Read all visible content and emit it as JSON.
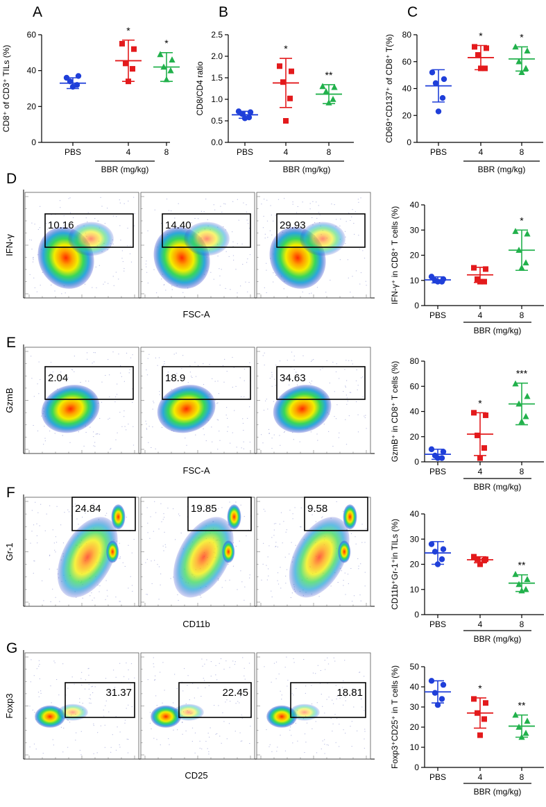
{
  "colors": {
    "pbs": "#1f3fd9",
    "bbr4": "#e31a1c",
    "bbr8": "#22b14c"
  },
  "panel_letters": [
    "A",
    "B",
    "C",
    "D",
    "E",
    "F",
    "G"
  ],
  "chart_data": [
    {
      "id": "A",
      "type": "scatter",
      "ylabel": "CD8⁺ of CD3⁺ TILs (%)",
      "ylim": [
        0,
        60
      ],
      "yticks": [
        "0",
        "20",
        "40",
        "60"
      ],
      "categories": [
        "PBS",
        "4",
        "8"
      ],
      "group_label": "BBR (mg/kg)",
      "points": [
        [
          36,
          37,
          34,
          32,
          31
        ],
        [
          55,
          52,
          44,
          41,
          34
        ],
        [
          49,
          46,
          42,
          40,
          35
        ]
      ],
      "mean": [
        33,
        45.5,
        42
      ],
      "sd": [
        3,
        11.5,
        8
      ],
      "significance": [
        "",
        "*",
        "*"
      ]
    },
    {
      "id": "B",
      "type": "scatter",
      "ylabel": "CD8/CD4 ratio",
      "ylim": [
        0,
        2.5
      ],
      "yticks": [
        "0.0",
        "0.5",
        "1.0",
        "1.5",
        "2.0",
        "2.5"
      ],
      "categories": [
        "PBS",
        "4",
        "8"
      ],
      "group_label": "BBR (mg/kg)",
      "points": [
        [
          0.72,
          0.7,
          0.66,
          0.58,
          0.56
        ],
        [
          1.77,
          1.65,
          1.4,
          1.02,
          0.5
        ],
        [
          1.3,
          1.28,
          1.18,
          1.0,
          0.92
        ]
      ],
      "mean": [
        0.64,
        1.38,
        1.12
      ],
      "sd": [
        0.08,
        0.57,
        0.22
      ],
      "significance": [
        "",
        "*",
        "**"
      ]
    },
    {
      "id": "C",
      "type": "scatter",
      "ylabel": "CD69⁺CD137⁺ of CD8⁺ T(%)",
      "ylim": [
        0,
        80
      ],
      "yticks": [
        "0",
        "20",
        "40",
        "60",
        "80"
      ],
      "categories": [
        "PBS",
        "4",
        "8"
      ],
      "group_label": "BBR (mg/kg)",
      "points": [
        [
          52,
          47,
          44,
          33,
          23
        ],
        [
          71,
          70,
          65,
          55,
          55
        ],
        [
          71,
          68,
          60,
          55,
          52
        ]
      ],
      "mean": [
        42,
        63,
        62
      ],
      "sd": [
        12,
        9,
        9
      ],
      "significance": [
        "",
        "*",
        "*"
      ]
    },
    {
      "id": "D",
      "type": "scatter",
      "ylabel": "IFN-γ⁺ in CD8⁺ T cells (%)",
      "ylim": [
        0,
        40
      ],
      "yticks": [
        "0",
        "10",
        "20",
        "30",
        "40"
      ],
      "categories": [
        "PBS",
        "4",
        "8"
      ],
      "group_label": "BBR (mg/kg)",
      "points": [
        [
          11.5,
          10.5,
          10,
          9.5,
          9.5
        ],
        [
          15,
          14.5,
          10.5,
          9.5,
          9.5
        ],
        [
          29.5,
          28.5,
          22,
          17,
          15
        ]
      ],
      "mean": [
        10.2,
        12.2,
        22
      ],
      "sd": [
        1.2,
        3,
        8
      ],
      "significance": [
        "",
        "",
        "*"
      ]
    },
    {
      "id": "E",
      "type": "scatter",
      "ylabel": "GzmB⁺ in CD8⁺ T cells (%)",
      "ylim": [
        0,
        80
      ],
      "yticks": [
        "0",
        "20",
        "40",
        "60",
        "80"
      ],
      "categories": [
        "PBS",
        "4",
        "8"
      ],
      "group_label": "BBR (mg/kg)",
      "points": [
        [
          10,
          8,
          5,
          3,
          3
        ],
        [
          39,
          37,
          21,
          11,
          3
        ],
        [
          62,
          52,
          46,
          36,
          32
        ]
      ],
      "mean": [
        6,
        22,
        46
      ],
      "sd": [
        4,
        17,
        16.5
      ],
      "significance": [
        "",
        "*",
        "***"
      ]
    },
    {
      "id": "F",
      "type": "scatter",
      "ylabel": "CD11b⁺Gr-1⁺in TILs (%)",
      "ylim": [
        0,
        40
      ],
      "yticks": [
        "0",
        "10",
        "20",
        "30",
        "40"
      ],
      "categories": [
        "PBS",
        "4",
        "8"
      ],
      "group_label": "BBR (mg/kg)",
      "points": [
        [
          28,
          26,
          25,
          22,
          20
        ],
        [
          23,
          22,
          22,
          21.5,
          20
        ],
        [
          16,
          14,
          12,
          10,
          9.5
        ]
      ],
      "mean": [
        24.5,
        21.8,
        12.5
      ],
      "sd": [
        4.5,
        1.2,
        3.3
      ],
      "significance": [
        "",
        "",
        "**"
      ]
    },
    {
      "id": "G",
      "type": "scatter",
      "ylabel": "Foxp3⁺CD25⁺ in T cells (%)",
      "ylim": [
        0,
        50
      ],
      "yticks": [
        "0",
        "10",
        "20",
        "30",
        "40",
        "50"
      ],
      "categories": [
        "PBS",
        "4",
        "8"
      ],
      "group_label": "BBR (mg/kg)",
      "points": [
        [
          43,
          41,
          37,
          34,
          31
        ],
        [
          34,
          32,
          27,
          24,
          16
        ],
        [
          26,
          23,
          20,
          17,
          15
        ]
      ],
      "mean": [
        37.5,
        27,
        20.5
      ],
      "sd": [
        5.5,
        7.5,
        5.5
      ],
      "significance": [
        "",
        "*",
        "**"
      ]
    }
  ],
  "flow_plots": [
    {
      "row": "D",
      "ylabel": "IFN-γ",
      "xlabel": "FSC-A",
      "values": [
        "10.16",
        "14.40",
        "29.93"
      ]
    },
    {
      "row": "E",
      "ylabel": "GzmB",
      "xlabel": "FSC-A",
      "values": [
        "2.04",
        "18.9",
        "34.63"
      ]
    },
    {
      "row": "F",
      "ylabel": "Gr-1",
      "xlabel": "CD11b",
      "values": [
        "24.84",
        "19.85",
        "9.58"
      ]
    },
    {
      "row": "G",
      "ylabel": "Foxp3",
      "xlabel": "CD25",
      "values": [
        "31.37",
        "22.45",
        "18.81"
      ]
    }
  ]
}
